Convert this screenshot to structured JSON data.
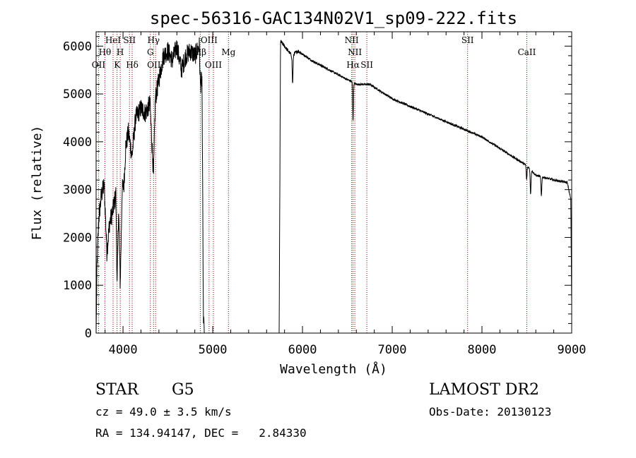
{
  "chart_data": {
    "type": "line",
    "title": "spec-56316-GAC134N02V1_sp09-222.fits",
    "xlabel": "Wavelength (Å)",
    "ylabel": "Flux (relative)",
    "xlim": [
      3700,
      9000
    ],
    "ylim": [
      0,
      6300
    ],
    "xticks": [
      {
        "value": 4000,
        "label": "4000"
      },
      {
        "value": 5000,
        "label": "5000"
      },
      {
        "value": 6000,
        "label": "6000"
      },
      {
        "value": 7000,
        "label": "7000"
      },
      {
        "value": 8000,
        "label": "8000"
      },
      {
        "value": 9000,
        "label": "9000"
      }
    ],
    "yticks": [
      {
        "value": 0,
        "label": "0"
      },
      {
        "value": 1000,
        "label": "1000"
      },
      {
        "value": 2000,
        "label": "2000"
      },
      {
        "value": 3000,
        "label": "3000"
      },
      {
        "value": 4000,
        "label": "4000"
      },
      {
        "value": 5000,
        "label": "5000"
      },
      {
        "value": 6000,
        "label": "6000"
      }
    ],
    "x_minor_step": 200,
    "y_minor_step": 200,
    "spectral_lines": [
      {
        "name": "OII",
        "wavelength": 3727,
        "row": 3
      },
      {
        "name": "Hθ",
        "wavelength": 3798,
        "row": 2
      },
      {
        "name": "HeI",
        "wavelength": 3889,
        "row": 1
      },
      {
        "name": "K",
        "wavelength": 3934,
        "row": 3
      },
      {
        "name": "H",
        "wavelength": 3969,
        "row": 2
      },
      {
        "name": "SII",
        "wavelength": 4072,
        "row": 1
      },
      {
        "name": "Hδ",
        "wavelength": 4102,
        "row": 3
      },
      {
        "name": "Hγ",
        "wavelength": 4340,
        "row": 1
      },
      {
        "name": "G",
        "wavelength": 4305,
        "row": 2
      },
      {
        "name": "OIII",
        "wavelength": 4363,
        "row": 3
      },
      {
        "name": "Hβ",
        "wavelength": 4861,
        "row": 2
      },
      {
        "name": "OIII",
        "wavelength": 4959,
        "row": 1
      },
      {
        "name": "OIII",
        "wavelength": 5007,
        "row": 3
      },
      {
        "name": "Mg",
        "wavelength": 5175,
        "row": 2
      },
      {
        "name": "NII",
        "wavelength": 6548,
        "row": 1
      },
      {
        "name": "NII",
        "wavelength": 6583,
        "row": 2
      },
      {
        "name": "Hα",
        "wavelength": 6563,
        "row": 3
      },
      {
        "name": "SII",
        "wavelength": 6717,
        "row": 3
      },
      {
        "name": "SII",
        "wavelength": 7840,
        "row": 1
      },
      {
        "name": "CaII",
        "wavelength": 8500,
        "row": 2
      }
    ],
    "spectrum_anchors": [
      [
        3700,
        0
      ],
      [
        3710,
        1400
      ],
      [
        3730,
        2400
      ],
      [
        3760,
        2900
      ],
      [
        3790,
        3100
      ],
      [
        3820,
        1700
      ],
      [
        3850,
        2300
      ],
      [
        3880,
        2500
      ],
      [
        3920,
        2900
      ],
      [
        3934,
        1000
      ],
      [
        3950,
        2600
      ],
      [
        3969,
        1000
      ],
      [
        3990,
        3000
      ],
      [
        4010,
        3100
      ],
      [
        4030,
        3900
      ],
      [
        4060,
        4200
      ],
      [
        4100,
        3700
      ],
      [
        4140,
        4500
      ],
      [
        4200,
        4700
      ],
      [
        4250,
        4600
      ],
      [
        4300,
        4800
      ],
      [
        4340,
        3300
      ],
      [
        4360,
        4900
      ],
      [
        4400,
        5300
      ],
      [
        4450,
        5800
      ],
      [
        4500,
        5900
      ],
      [
        4550,
        5700
      ],
      [
        4600,
        6000
      ],
      [
        4650,
        5500
      ],
      [
        4700,
        5800
      ],
      [
        4750,
        5900
      ],
      [
        4800,
        5800
      ],
      [
        4850,
        6000
      ],
      [
        4861,
        5200
      ],
      [
        4880,
        5300
      ],
      [
        4895,
        400
      ],
      [
        4905,
        0
      ],
      [
        5700,
        0
      ],
      [
        5740,
        0
      ],
      [
        5755,
        6100
      ],
      [
        5800,
        6000
      ],
      [
        5880,
        5800
      ],
      [
        5950,
        5900
      ],
      [
        6100,
        5700
      ],
      [
        6300,
        5500
      ],
      [
        6500,
        5300
      ],
      [
        6560,
        5250
      ],
      [
        6600,
        5200
      ],
      [
        6750,
        5200
      ],
      [
        7000,
        4900
      ],
      [
        7500,
        4500
      ],
      [
        8000,
        4100
      ],
      [
        8500,
        3500
      ],
      [
        8600,
        3300
      ],
      [
        8800,
        3200
      ],
      [
        8950,
        3150
      ],
      [
        8990,
        2800
      ],
      [
        9000,
        600
      ]
    ],
    "absorption_dips": [
      {
        "wavelength": 5890,
        "depth": 600
      },
      {
        "wavelength": 6563,
        "depth": 800
      },
      {
        "wavelength": 8498,
        "depth": 300
      },
      {
        "wavelength": 8542,
        "depth": 500
      },
      {
        "wavelength": 8662,
        "depth": 400
      }
    ]
  },
  "footer": {
    "object_type": "STAR",
    "subclass": "G5",
    "survey": "LAMOST DR2",
    "redshift_line": "cz = 49.0 ± 3.5 km/s",
    "obs_date_line": "Obs-Date: 20130123",
    "coords_line": "RA = 134.94147, DEC =   2.84330"
  },
  "colors": {
    "axis": "#000000",
    "spectrum": "#000000",
    "line_marker": "#a00000"
  }
}
